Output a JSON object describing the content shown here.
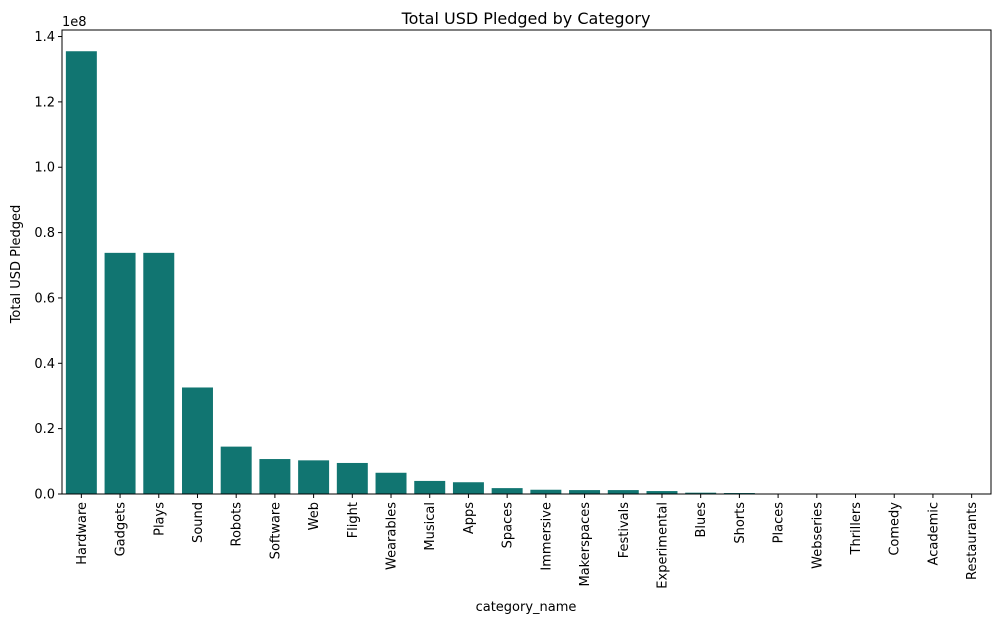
{
  "chart_data": {
    "type": "bar",
    "title": "Total USD Pledged by Category",
    "xlabel": "category_name",
    "ylabel": "Total USD Pledged",
    "y_offset_label": "1e8",
    "y_scale": 100000000,
    "ylim": [
      0,
      142000000
    ],
    "yticks": [
      0,
      0.2,
      0.4,
      0.6,
      0.8,
      1.0,
      1.2,
      1.4
    ],
    "ytick_labels": [
      "0.0",
      "0.2",
      "0.4",
      "0.6",
      "0.8",
      "1.0",
      "1.2",
      "1.4"
    ],
    "grid": false,
    "bar_color": "#117571",
    "categories": [
      "Hardware",
      "Gadgets",
      "Plays",
      "Sound",
      "Robots",
      "Software",
      "Web",
      "Flight",
      "Wearables",
      "Musical",
      "Apps",
      "Spaces",
      "Immersive",
      "Makerspaces",
      "Festivals",
      "Experimental",
      "Blues",
      "Shorts",
      "Places",
      "Webseries",
      "Thrillers",
      "Comedy",
      "Academic",
      "Restaurants"
    ],
    "values": [
      135500000,
      73800000,
      73800000,
      32600000,
      14500000,
      10700000,
      10300000,
      9500000,
      6500000,
      4000000,
      3600000,
      1800000,
      1300000,
      1200000,
      1200000,
      900000,
      400000,
      300000,
      50000,
      40000,
      30000,
      20000,
      10000,
      5000
    ]
  }
}
